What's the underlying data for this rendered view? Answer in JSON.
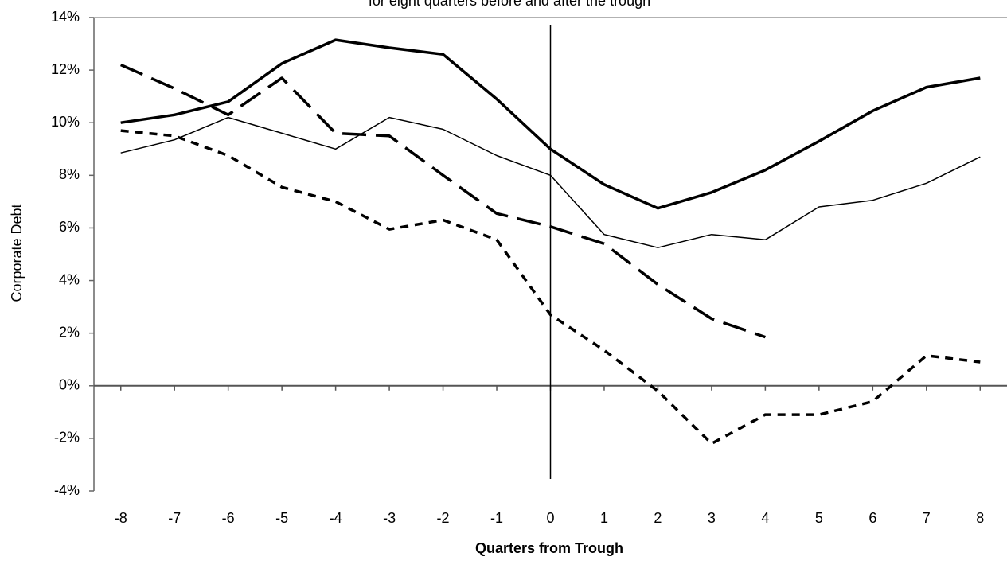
{
  "chart_data": {
    "type": "line",
    "subtitle": "for eight quarters before and after the trough",
    "x_label": "Quarters from Trough",
    "y_label": "Corporate Debt",
    "x": [
      -8,
      -7,
      -6,
      -5,
      -4,
      -3,
      -2,
      -1,
      0,
      1,
      2,
      3,
      4,
      5,
      6,
      7,
      8
    ],
    "xlim": [
      -8.5,
      8.5
    ],
    "xticks": [
      -8,
      -7,
      -6,
      -5,
      -4,
      -3,
      -2,
      -1,
      0,
      1,
      2,
      3,
      4,
      5,
      6,
      7,
      8
    ],
    "ylim": [
      -4,
      14
    ],
    "yticks": [
      {
        "value": -4,
        "label": "-4%"
      },
      {
        "value": -2,
        "label": "-2%"
      },
      {
        "value": 0,
        "label": "0%"
      },
      {
        "value": 2,
        "label": "2%"
      },
      {
        "value": 4,
        "label": "4%"
      },
      {
        "value": 6,
        "label": "6%"
      },
      {
        "value": 8,
        "label": "8%"
      },
      {
        "value": 10,
        "label": "10%"
      },
      {
        "value": 12,
        "label": "12%"
      },
      {
        "value": 14,
        "label": "14%"
      }
    ],
    "grid": false,
    "vline": 0,
    "series": [
      {
        "color": "#000000",
        "width": 3.5,
        "dash": "solid",
        "values": [
          10.0,
          10.3,
          10.8,
          12.25,
          13.15,
          12.85,
          12.6,
          10.9,
          9.0,
          7.65,
          6.75,
          7.35,
          8.2,
          9.3,
          10.45,
          11.35,
          11.7
        ]
      },
      {
        "color": "#000000",
        "width": 1.5,
        "dash": "solid",
        "values": [
          8.85,
          9.35,
          10.2,
          9.6,
          9.0,
          10.2,
          9.75,
          8.75,
          8.0,
          5.75,
          5.25,
          5.75,
          5.55,
          6.8,
          7.05,
          7.7,
          8.7
        ]
      },
      {
        "color": "#000000",
        "width": 3.5,
        "dash": "long",
        "values": [
          12.2,
          11.3,
          10.3,
          11.7,
          9.6,
          9.5,
          8.0,
          6.55,
          6.05,
          5.4,
          3.85,
          2.55,
          1.85,
          null,
          null,
          null,
          null
        ]
      },
      {
        "color": "#000000",
        "width": 3.5,
        "dash": "short",
        "values": [
          9.7,
          9.5,
          8.75,
          7.55,
          7.0,
          5.95,
          6.3,
          5.55,
          2.7,
          1.35,
          -0.2,
          -2.2,
          -1.1,
          -1.1,
          -0.6,
          1.15,
          0.9
        ]
      }
    ]
  }
}
